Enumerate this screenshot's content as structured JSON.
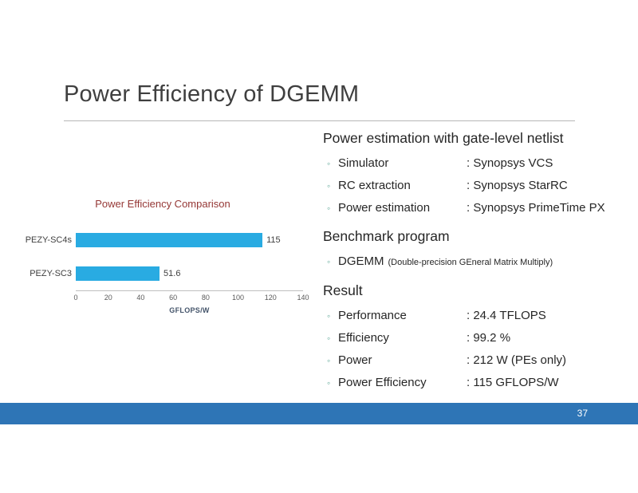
{
  "slide": {
    "title": "Power Efficiency of DGEMM",
    "page_number": "37"
  },
  "ui": {
    "bullet": "◦"
  },
  "colors": {
    "bar": "#29abe2",
    "footer": "#2e75b6",
    "chart_title": "#953735",
    "bullet": "#5fa898",
    "title_text": "#3f3f3f"
  },
  "chart_data": {
    "type": "bar",
    "orientation": "horizontal",
    "title": "Power Efficiency Comparison",
    "categories": [
      "PEZY-SC4s",
      "PEZY-SC3"
    ],
    "values": [
      115,
      51.6
    ],
    "xlabel": "GFLOPS/W",
    "xlim": [
      0,
      140
    ],
    "xticks": [
      0,
      20,
      40,
      60,
      80,
      100,
      120,
      140
    ],
    "grid": false,
    "legend": "none",
    "bar_color": "#29abe2"
  },
  "sections": [
    {
      "heading": "Power estimation with gate-level netlist",
      "items": [
        {
          "label": "Simulator",
          "value": ": Synopsys VCS"
        },
        {
          "label": "RC extraction",
          "value": ": Synopsys StarRC"
        },
        {
          "label": "Power estimation",
          "value": ": Synopsys PrimeTime PX"
        }
      ]
    },
    {
      "heading": "Benchmark program",
      "items": [
        {
          "label": "DGEMM",
          "note": "(Double-precision GEneral Matrix Multiply)"
        }
      ]
    },
    {
      "heading": "Result",
      "items": [
        {
          "label": "Performance",
          "value": ": 24.4 TFLOPS"
        },
        {
          "label": "Efficiency",
          "value": ": 99.2 %"
        },
        {
          "label": "Power",
          "value": ": 212 W (PEs only)"
        },
        {
          "label": "Power Efficiency",
          "value": ": 115 GFLOPS/W"
        }
      ]
    }
  ]
}
